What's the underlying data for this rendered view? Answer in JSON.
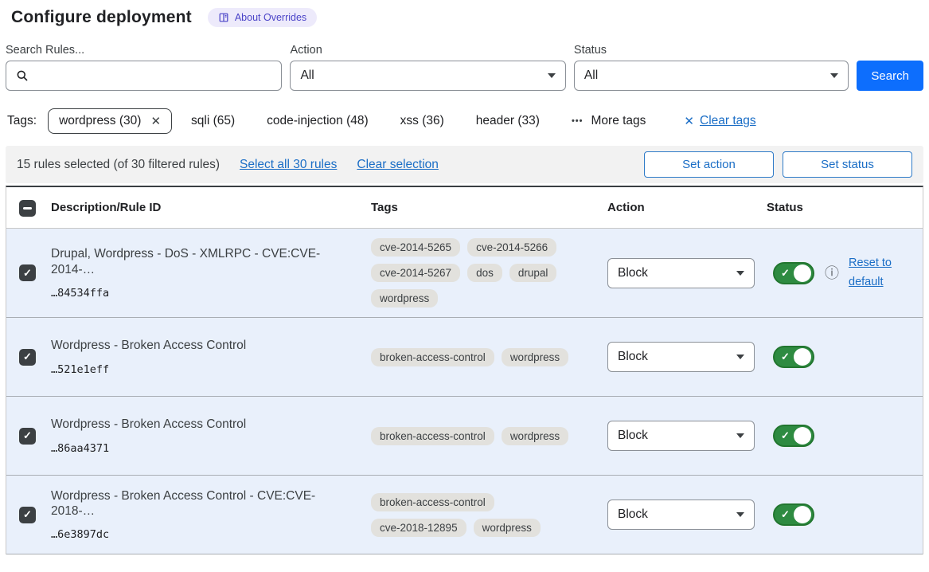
{
  "page": {
    "title": "Configure deployment",
    "about_badge": "About Overrides"
  },
  "icons": {
    "check": "✓",
    "close": "✕",
    "ellipsis": "•••",
    "info": "ⓘ"
  },
  "filters": {
    "search_label": "Search Rules...",
    "search_value": "",
    "action_label": "Action",
    "action_value": "All",
    "status_label": "Status",
    "status_value": "All",
    "search_button": "Search"
  },
  "tags_bar": {
    "label": "Tags:",
    "selected_label": "wordpress (30)",
    "options": [
      "sqli (65)",
      "code-injection (48)",
      "xss (36)",
      "header (33)"
    ],
    "more_label": "More tags",
    "clear_label": "Clear tags"
  },
  "selection_bar": {
    "summary": "15 rules selected (of 30 filtered rules)",
    "select_all": "Select all 30 rules",
    "clear_selection": "Clear selection",
    "set_action": "Set action",
    "set_status": "Set status"
  },
  "table": {
    "columns": {
      "description": "Description/Rule ID",
      "tags": "Tags",
      "action": "Action",
      "status": "Status"
    },
    "rows": [
      {
        "description": "Drupal, Wordpress - DoS - XMLRPC - CVE:CVE-2014-…",
        "rule_id": "…84534ffa",
        "tags": [
          "cve-2014-5265",
          "cve-2014-5266",
          "cve-2014-5267",
          "dos",
          "drupal",
          "wordpress"
        ],
        "action": "Block",
        "enabled": true,
        "has_reset": true,
        "reset_label": "Reset to default"
      },
      {
        "description": "Wordpress - Broken Access Control",
        "rule_id": "…521e1eff",
        "tags": [
          "broken-access-control",
          "wordpress"
        ],
        "action": "Block",
        "enabled": true,
        "has_reset": false,
        "reset_label": ""
      },
      {
        "description": "Wordpress - Broken Access Control",
        "rule_id": "…86aa4371",
        "tags": [
          "broken-access-control",
          "wordpress"
        ],
        "action": "Block",
        "enabled": true,
        "has_reset": false,
        "reset_label": ""
      },
      {
        "description": "Wordpress - Broken Access Control - CVE:CVE-2018-…",
        "rule_id": "…6e3897dc",
        "tags": [
          "broken-access-control",
          "cve-2018-12895",
          "wordpress"
        ],
        "action": "Block",
        "enabled": true,
        "has_reset": false,
        "reset_label": ""
      }
    ]
  },
  "colors": {
    "link_blue": "#1b6ec6",
    "button_blue": "#0d6efd",
    "toggle_green": "#2e8b41",
    "row_background": "#e9f0fb",
    "chip_background": "#e2e1dd",
    "badge_background": "#edeafb",
    "badge_text": "#4b44c8"
  }
}
